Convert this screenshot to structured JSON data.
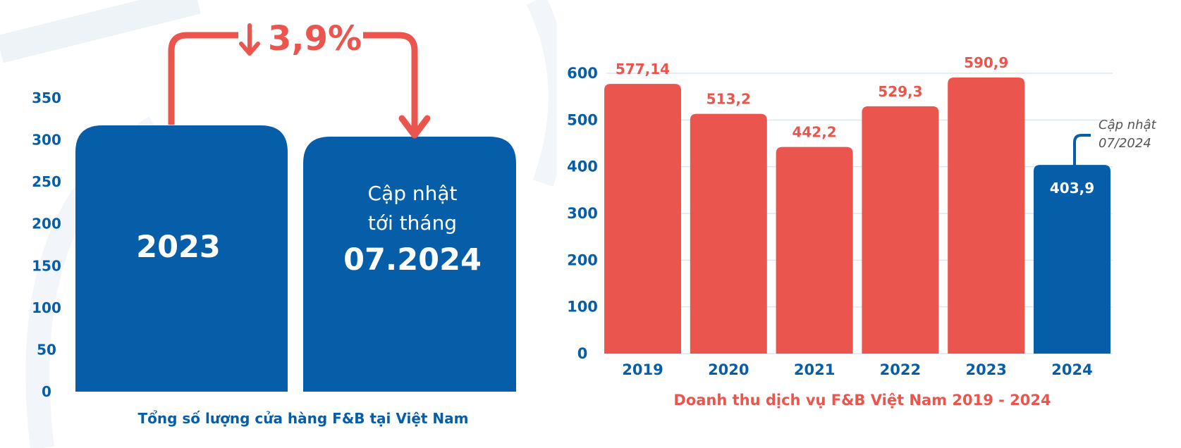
{
  "colors": {
    "blue": "#075ea8",
    "red": "#ea554d",
    "grid": "#dce6f0",
    "white": "#ffffff"
  },
  "chart_data": [
    {
      "type": "bar",
      "title": "Tổng số lượng cửa hàng F&B tại Việt Nam",
      "y_ticks": [
        "0",
        "50",
        "100",
        "150",
        "200",
        "250",
        "300",
        "350"
      ],
      "ylim": [
        0,
        350
      ],
      "grid": false,
      "bars": [
        {
          "label": "2023"
        },
        {
          "label_line1": "Cập nhật",
          "label_line2": "tới tháng",
          "label": "07.2024"
        }
      ],
      "change_label": "3,9%",
      "change_direction": "down"
    },
    {
      "type": "bar",
      "title": "Doanh thu dịch vụ F&B Việt Nam 2019 - 2024",
      "categories": [
        "2019",
        "2020",
        "2021",
        "2022",
        "2023",
        "2024"
      ],
      "values": [
        577.14,
        513.2,
        442.2,
        529.3,
        590.9,
        403.9
      ],
      "value_labels": [
        "577,14",
        "513,2",
        "442,2",
        "529,3",
        "590,9",
        "403,9"
      ],
      "y_ticks": [
        "0",
        "100",
        "200",
        "300",
        "400",
        "500",
        "600"
      ],
      "ylim": [
        0,
        600
      ],
      "grid": true,
      "highlight_category": "2024",
      "note_line1": "Cập nhật",
      "note_line2": "07/2024"
    }
  ]
}
